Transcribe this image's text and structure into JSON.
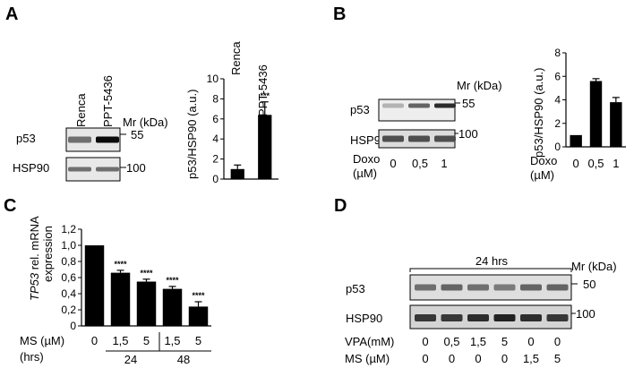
{
  "panels": {
    "A": {
      "letter": "A",
      "lanes": [
        "Renca",
        "PPT-5436"
      ],
      "mr_label": "Mr (kDa)",
      "blots": [
        {
          "protein": "p53",
          "marker": "55",
          "band_intensity": [
            0.55,
            1.0
          ]
        },
        {
          "protein": "HSP90",
          "marker": "100",
          "band_intensity": [
            0.55,
            0.55
          ]
        }
      ]
    },
    "B": {
      "letter": "B",
      "mr_label": "Mr (kDa)",
      "treatment_label": "Doxo",
      "unit_label": "(µM)",
      "doses": [
        "0",
        "0,5",
        "1"
      ],
      "blots": [
        {
          "protein": "p53",
          "marker": "55",
          "band_intensity": [
            0.25,
            0.6,
            0.85
          ]
        },
        {
          "protein": "HSP90",
          "marker": "100",
          "band_intensity": [
            0.7,
            0.7,
            0.7
          ]
        }
      ]
    },
    "C": {
      "letter": "C",
      "ylabel_gene": "TP53",
      "ylabel_rest": " rel. mRNA",
      "ylabel_line2": "expression",
      "ms_label": "MS (µM)",
      "hrs_label": "(hrs)",
      "ms_values": [
        "0",
        "1,5",
        "5",
        "1,5",
        "5"
      ],
      "hrs_groups": [
        "24",
        "48"
      ]
    },
    "D": {
      "letter": "D",
      "time_label": "24 hrs",
      "mr_label": "Mr (kDa)",
      "vpa_label": "VPA(mM)",
      "ms_label": "MS  (µM)",
      "vpa_values": [
        "0",
        "0,5",
        "1,5",
        "5",
        "0",
        "0"
      ],
      "ms_values": [
        "0",
        "0",
        "0",
        "0",
        "1,5",
        "5"
      ],
      "blots": [
        {
          "protein": "p53",
          "marker": "50",
          "band_intensity": [
            0.55,
            0.6,
            0.55,
            0.5,
            0.6,
            0.6
          ]
        },
        {
          "protein": "HSP90",
          "marker": "100",
          "band_intensity": [
            0.8,
            0.8,
            0.85,
            0.9,
            0.85,
            0.8
          ]
        }
      ]
    }
  },
  "chart_data": [
    {
      "panel": "A",
      "type": "bar",
      "categories": [
        "Renca",
        "PPT-5436"
      ],
      "values": [
        1.0,
        6.4
      ],
      "errors": [
        0.4,
        1.3
      ],
      "annotations": [
        "",
        "***"
      ],
      "ylabel": "p53/HSP90 (a.u.)",
      "ylim": [
        0,
        10
      ],
      "yticks": [
        "0",
        "2",
        "4",
        "6",
        "8",
        "10"
      ]
    },
    {
      "panel": "B",
      "type": "bar",
      "categories": [
        "0",
        "0,5",
        "1"
      ],
      "values": [
        1.0,
        5.6,
        3.8
      ],
      "errors": [
        0.0,
        0.2,
        0.4
      ],
      "ylabel": "p53/HSP90 (a.u.)",
      "xlabel": "Doxo (µM)",
      "xlabel_line1": "Doxo",
      "xlabel_line2": "(µM)",
      "ylim": [
        0,
        8
      ],
      "yticks": [
        "0",
        "2",
        "4",
        "6",
        "8"
      ]
    },
    {
      "panel": "C",
      "type": "bar",
      "categories": [
        "0",
        "1,5",
        "5",
        "1,5",
        "5"
      ],
      "values": [
        1.0,
        0.66,
        0.55,
        0.46,
        0.24
      ],
      "errors": [
        0.0,
        0.03,
        0.03,
        0.03,
        0.06
      ],
      "annotations": [
        "",
        "****",
        "****",
        "****",
        "****"
      ],
      "ylim": [
        0,
        1.2
      ],
      "yticks": [
        "0",
        "0,2",
        "0,4",
        "0,6",
        "0,8",
        "1,0",
        "1,2"
      ]
    }
  ]
}
